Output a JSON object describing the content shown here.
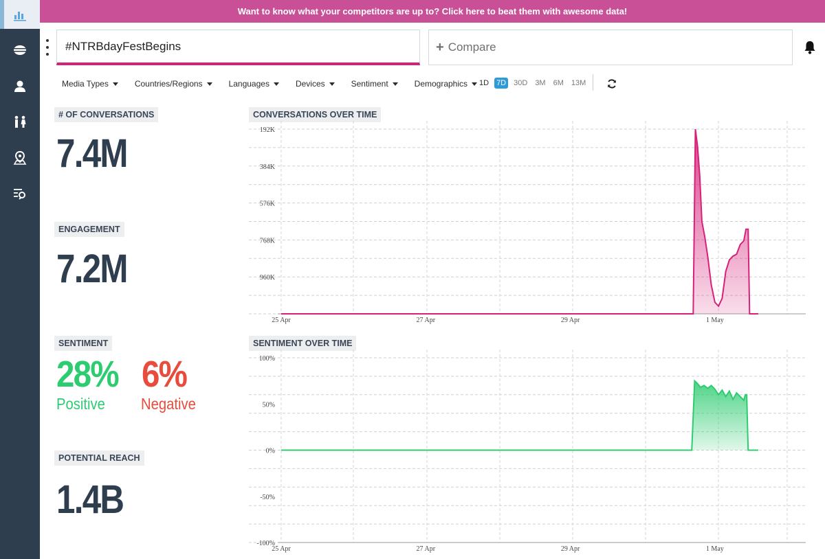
{
  "sidebar": {
    "items": [
      {
        "icon": "bar-chart-icon",
        "active": true
      },
      {
        "icon": "hamburger-icon",
        "active": false
      },
      {
        "icon": "user-icon",
        "active": false
      },
      {
        "icon": "people-icon",
        "active": false
      },
      {
        "icon": "map-pin-icon",
        "active": false
      },
      {
        "icon": "list-search-icon",
        "active": false
      }
    ]
  },
  "banner": {
    "text": "Want to know what your competitors are up to? Click here to beat them with awesome data!",
    "color": "#c94f97"
  },
  "search": {
    "query": "#NTRBdayFestBegins",
    "compare_label": "Compare"
  },
  "filters": [
    {
      "label": "Media Types"
    },
    {
      "label": "Countries/Regions"
    },
    {
      "label": "Languages"
    },
    {
      "label": "Devices"
    },
    {
      "label": "Sentiment"
    },
    {
      "label": "Demographics"
    }
  ],
  "ranges": [
    {
      "label": "1D",
      "active": false
    },
    {
      "label": "7D",
      "active": true
    },
    {
      "label": "30D",
      "active": false
    },
    {
      "label": "3M",
      "active": false
    },
    {
      "label": "6M",
      "active": false
    },
    {
      "label": "13M",
      "active": false
    }
  ],
  "metrics": {
    "conversations": {
      "label": "# OF CONVERSATIONS",
      "value": "7.4M"
    },
    "engagement": {
      "label": "ENGAGEMENT",
      "value": "7.2M"
    },
    "sentiment": {
      "label": "SENTIMENT",
      "positive_value": "28%",
      "positive_label": "Positive",
      "negative_value": "6%",
      "negative_label": "Negative"
    },
    "reach": {
      "label": "POTENTIAL REACH",
      "value": "1.4B"
    }
  },
  "chart_data": [
    {
      "type": "area",
      "title": "CONVERSATIONS OVER TIME",
      "color": "#d6217a",
      "x_ticks": [
        "25 Apr",
        "27 Apr",
        "29 Apr",
        "1 May"
      ],
      "y_ticks": [
        "192K",
        "384K",
        "576K",
        "768K",
        "960K"
      ],
      "ylim": [
        0,
        960000
      ],
      "x_range_days": [
        0,
        7
      ],
      "grid": true,
      "points": [
        [
          0,
          0
        ],
        [
          5.7,
          0
        ],
        [
          5.73,
          960000
        ],
        [
          5.76,
          870000
        ],
        [
          5.79,
          720000
        ],
        [
          5.82,
          480000
        ],
        [
          5.86,
          400000
        ],
        [
          5.9,
          300000
        ],
        [
          5.95,
          150000
        ],
        [
          6.0,
          60000
        ],
        [
          6.05,
          40000
        ],
        [
          6.1,
          80000
        ],
        [
          6.15,
          220000
        ],
        [
          6.2,
          280000
        ],
        [
          6.25,
          300000
        ],
        [
          6.3,
          310000
        ],
        [
          6.35,
          360000
        ],
        [
          6.4,
          380000
        ],
        [
          6.43,
          440000
        ],
        [
          6.46,
          440000
        ],
        [
          6.48,
          0
        ],
        [
          6.6,
          0
        ]
      ]
    },
    {
      "type": "area",
      "title": "SENTIMENT OVER TIME",
      "color": "#2ecc71",
      "x_ticks": [
        "25 Apr",
        "27 Apr",
        "29 Apr",
        "1 May"
      ],
      "y_ticks": [
        "100%",
        "50%",
        "0%",
        "-50%",
        "-100%"
      ],
      "ylim": [
        -100,
        100
      ],
      "x_range_days": [
        0,
        7
      ],
      "grid": true,
      "points": [
        [
          0,
          0
        ],
        [
          5.68,
          0
        ],
        [
          5.72,
          75
        ],
        [
          5.76,
          72
        ],
        [
          5.8,
          68
        ],
        [
          5.85,
          70
        ],
        [
          5.9,
          67
        ],
        [
          5.95,
          70
        ],
        [
          6.0,
          66
        ],
        [
          6.05,
          60
        ],
        [
          6.1,
          65
        ],
        [
          6.15,
          58
        ],
        [
          6.2,
          64
        ],
        [
          6.25,
          55
        ],
        [
          6.3,
          62
        ],
        [
          6.35,
          58
        ],
        [
          6.4,
          54
        ],
        [
          6.42,
          60
        ],
        [
          6.44,
          60
        ],
        [
          6.46,
          0
        ],
        [
          6.6,
          0
        ]
      ]
    }
  ]
}
